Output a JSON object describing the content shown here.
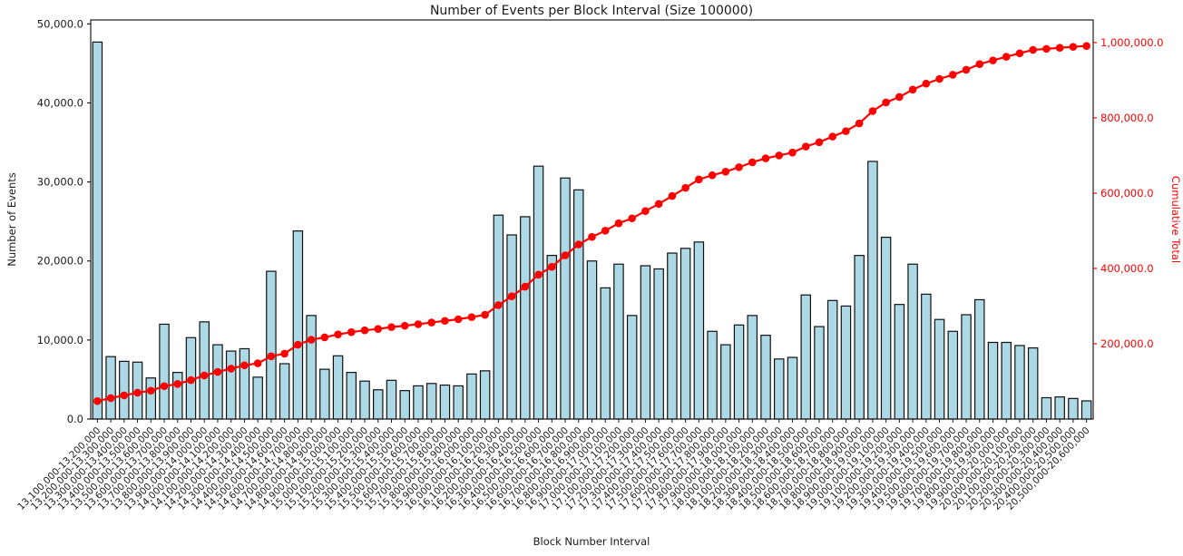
{
  "figure": {
    "title": "Number of Events per Block Interval (Size 100000)",
    "xlabel": "Block Number Interval",
    "ylabel_left": "Number of Events",
    "ylabel_right": "Cumulative Total"
  },
  "colors": {
    "bar_fill": "#ADD8E6",
    "bar_edge": "#111111",
    "line": "#FF0000",
    "axis": "#1a1a1a",
    "text": "#1a1a1a"
  },
  "chart_data": {
    "type": "bar",
    "title": "Number of Events per Block Interval (Size 100000)",
    "xlabel": "Block Number Interval",
    "ylabel": "Number of Events",
    "ylabel_secondary": "Cumulative Total",
    "grid": false,
    "legend": "none",
    "x_tick_rotation": 45,
    "categories": [
      "13,100,000-13,200,000",
      "13,200,000-13,300,000",
      "13,300,000-13,400,000",
      "13,400,000-13,500,000",
      "13,500,000-13,600,000",
      "13,600,000-13,700,000",
      "13,700,000-13,800,000",
      "13,800,000-13,900,000",
      "13,900,000-14,000,000",
      "14,000,000-14,100,000",
      "14,100,000-14,200,000",
      "14,200,000-14,300,000",
      "14,300,000-14,400,000",
      "14,400,000-14,500,000",
      "14,500,000-14,600,000",
      "14,600,000-14,700,000",
      "14,700,000-14,800,000",
      "14,800,000-14,900,000",
      "14,900,000-15,000,000",
      "15,000,000-15,100,000",
      "15,100,000-15,200,000",
      "15,200,000-15,300,000",
      "15,300,000-15,400,000",
      "15,400,000-15,500,000",
      "15,500,000-15,600,000",
      "15,600,000-15,700,000",
      "15,700,000-15,800,000",
      "15,800,000-15,900,000",
      "15,900,000-16,000,000",
      "16,000,000-16,100,000",
      "16,100,000-16,200,000",
      "16,200,000-16,300,000",
      "16,300,000-16,400,000",
      "16,400,000-16,500,000",
      "16,500,000-16,600,000",
      "16,600,000-16,700,000",
      "16,700,000-16,800,000",
      "16,800,000-16,900,000",
      "16,900,000-17,000,000",
      "17,000,000-17,100,000",
      "17,100,000-17,200,000",
      "17,200,000-17,300,000",
      "17,300,000-17,400,000",
      "17,400,000-17,500,000",
      "17,500,000-17,600,000",
      "17,600,000-17,700,000",
      "17,700,000-17,800,000",
      "17,800,000-17,900,000",
      "17,900,000-18,000,000",
      "18,000,000-18,100,000",
      "18,100,000-18,200,000",
      "18,200,000-18,300,000",
      "18,300,000-18,400,000",
      "18,400,000-18,500,000",
      "18,500,000-18,600,000",
      "18,600,000-18,700,000",
      "18,700,000-18,800,000",
      "18,800,000-18,900,000",
      "18,900,000-19,000,000",
      "19,000,000-19,100,000",
      "19,100,000-19,200,000",
      "19,200,000-19,300,000",
      "19,300,000-19,400,000",
      "19,400,000-19,500,000",
      "19,500,000-19,600,000",
      "19,600,000-19,700,000",
      "19,700,000-19,800,000",
      "19,800,000-19,900,000",
      "19,900,000-20,000,000",
      "20,000,000-20,100,000",
      "20,100,000-20,200,000",
      "20,200,000-20,300,000",
      "20,300,000-20,400,000",
      "20,400,000-20,500,000",
      "20,500,000-20,600,000"
    ],
    "series": [
      {
        "name": "Number of Events",
        "type": "bar",
        "axis": "left",
        "values": [
          47700,
          7900,
          7300,
          7200,
          5200,
          12000,
          5900,
          10300,
          12300,
          9400,
          8600,
          8900,
          5300,
          18700,
          7000,
          23800,
          13100,
          6300,
          8000,
          5900,
          4800,
          3700,
          4900,
          3600,
          4200,
          4500,
          4300,
          4200,
          5700,
          6100,
          25800,
          23300,
          25600,
          32000,
          20700,
          30500,
          29000,
          20000,
          16600,
          19600,
          13100,
          19400,
          19000,
          21000,
          21600,
          22400,
          11100,
          9400,
          11900,
          13100,
          10600,
          7600,
          7800,
          15700,
          11700,
          15000,
          14300,
          20700,
          32600,
          23000,
          14500,
          19600,
          15800,
          12600,
          11100,
          13200,
          15100,
          9700,
          9700,
          9300,
          9000,
          2700,
          2800,
          2600,
          2300
        ]
      },
      {
        "name": "Cumulative Total",
        "type": "line",
        "axis": "right",
        "values": [
          47700,
          55600,
          62900,
          70100,
          75300,
          87300,
          93200,
          103500,
          115800,
          125200,
          133800,
          142700,
          148000,
          166700,
          173700,
          197500,
          210600,
          216900,
          224900,
          230800,
          235600,
          239300,
          244200,
          247800,
          252000,
          256500,
          260800,
          265000,
          270700,
          276800,
          302600,
          325900,
          351500,
          383500,
          404200,
          434700,
          463700,
          483700,
          500300,
          519900,
          533000,
          552400,
          571400,
          592400,
          614000,
          636400,
          647500,
          656900,
          668800,
          681900,
          692500,
          700100,
          707900,
          723600,
          735300,
          750300,
          764600,
          785300,
          817900,
          840900,
          855400,
          875000,
          890800,
          903400,
          914500,
          927700,
          942800,
          952500,
          962200,
          971500,
          980500,
          983200,
          986000,
          988600,
          990900
        ]
      }
    ],
    "left_axis": {
      "max": 50500,
      "ticks": [
        0,
        10000,
        20000,
        30000,
        40000,
        50000
      ],
      "tick_labels": [
        "0.0",
        "10,000.0",
        "20,000.0",
        "30,000.0",
        "40,000.0",
        "50,000.0"
      ]
    },
    "right_axis": {
      "max": 1060000,
      "ticks": [
        200000,
        400000,
        600000,
        800000,
        1000000
      ],
      "tick_labels": [
        "200,000.0",
        "400,000.0",
        "600,000.0",
        "800,000.0",
        "1,000,000.0"
      ]
    }
  }
}
